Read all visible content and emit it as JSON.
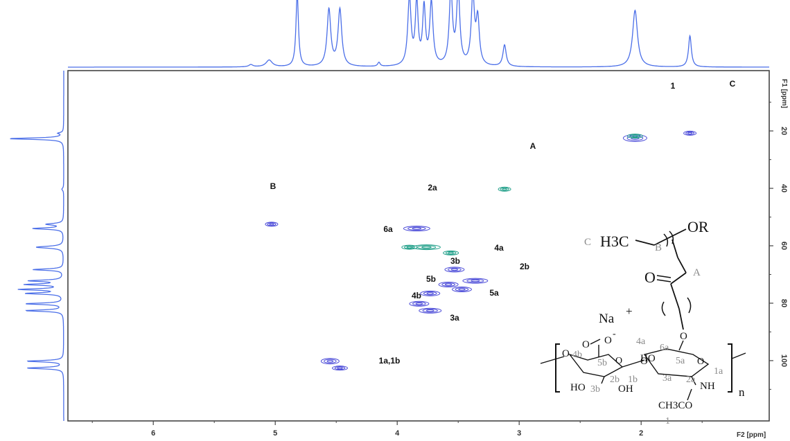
{
  "chart_data": {
    "type": "heatmap",
    "title": "",
    "xlabel": "F2 [ppm]",
    "ylabel": "F1 [ppm]",
    "xlim": [
      6.7,
      0.95
    ],
    "ylim": [
      -1,
      121
    ],
    "xticks": [
      6,
      5,
      4,
      3,
      2
    ],
    "yticks": [
      20,
      40,
      60,
      80,
      100
    ],
    "cross_peaks": [
      {
        "x": 2.05,
        "y": 22.5,
        "label": "1",
        "color": "#4a4ad8"
      },
      {
        "x": 2.05,
        "y": 21.8,
        "label": "",
        "color": "#22a08a"
      },
      {
        "x": 1.6,
        "y": 20.8,
        "label": "C",
        "color": "#4a4ad8"
      },
      {
        "x": 3.12,
        "y": 40.3,
        "label": "A",
        "color": "#22a08a"
      },
      {
        "x": 5.03,
        "y": 52.5,
        "label": "B",
        "color": "#4a4ad8"
      },
      {
        "x": 3.84,
        "y": 54.0,
        "label": "2a",
        "color": "#4a4ad8"
      },
      {
        "x": 3.9,
        "y": 60.5,
        "label": "",
        "color": "#22a08a"
      },
      {
        "x": 3.76,
        "y": 60.5,
        "label": "6a",
        "color": "#22a08a"
      },
      {
        "x": 3.56,
        "y": 62.5,
        "label": "",
        "color": "#22a08a"
      },
      {
        "x": 3.53,
        "y": 68.3,
        "label": "4a",
        "color": "#4a4ad8"
      },
      {
        "x": 3.36,
        "y": 72.2,
        "label": "2b",
        "color": "#4a4ad8"
      },
      {
        "x": 3.58,
        "y": 73.5,
        "label": "3b",
        "color": "#4a4ad8"
      },
      {
        "x": 3.47,
        "y": 75.2,
        "label": "5a",
        "color": "#4a4ad8"
      },
      {
        "x": 3.73,
        "y": 76.6,
        "label": "5b",
        "color": "#4a4ad8"
      },
      {
        "x": 3.82,
        "y": 80.2,
        "label": "4b",
        "color": "#4a4ad8"
      },
      {
        "x": 3.73,
        "y": 82.6,
        "label": "3a",
        "color": "#4a4ad8"
      },
      {
        "x": 4.55,
        "y": 100.2,
        "label": "1a,1b",
        "color": "#4a4ad8"
      },
      {
        "x": 4.47,
        "y": 102.6,
        "label": "",
        "color": "#4a4ad8"
      }
    ],
    "top_projection": [
      {
        "x": 5.2,
        "h": 0.04,
        "w": 0.02
      },
      {
        "x": 5.05,
        "h": 0.12,
        "w": 0.03
      },
      {
        "x": 4.82,
        "h": 1.3,
        "w": 0.012
      },
      {
        "x": 4.56,
        "h": 1.0,
        "w": 0.018
      },
      {
        "x": 4.47,
        "h": 1.0,
        "w": 0.018
      },
      {
        "x": 4.15,
        "h": 0.07,
        "w": 0.012
      },
      {
        "x": 3.9,
        "h": 1.2,
        "w": 0.016
      },
      {
        "x": 3.84,
        "h": 1.1,
        "w": 0.014
      },
      {
        "x": 3.78,
        "h": 1.0,
        "w": 0.014
      },
      {
        "x": 3.72,
        "h": 1.1,
        "w": 0.016
      },
      {
        "x": 3.56,
        "h": 1.3,
        "w": 0.016
      },
      {
        "x": 3.5,
        "h": 1.3,
        "w": 0.016
      },
      {
        "x": 3.38,
        "h": 1.2,
        "w": 0.016
      },
      {
        "x": 3.34,
        "h": 0.8,
        "w": 0.016
      },
      {
        "x": 3.12,
        "h": 0.38,
        "w": 0.016
      },
      {
        "x": 2.05,
        "h": 1.0,
        "w": 0.024
      },
      {
        "x": 1.6,
        "h": 0.55,
        "w": 0.014
      }
    ],
    "side_projection": [
      {
        "y": 20.8,
        "h": 0.08,
        "w": 0.3
      },
      {
        "y": 22.7,
        "h": 0.9,
        "w": 0.3
      },
      {
        "y": 40.3,
        "h": 0.03,
        "w": 0.5
      },
      {
        "y": 52.5,
        "h": 0.28,
        "w": 0.35
      },
      {
        "y": 54.0,
        "h": 0.5,
        "w": 0.3
      },
      {
        "y": 60.5,
        "h": 0.45,
        "w": 0.4
      },
      {
        "y": 68.3,
        "h": 0.5,
        "w": 0.3
      },
      {
        "y": 72.2,
        "h": 0.55,
        "w": 0.3
      },
      {
        "y": 73.5,
        "h": 0.6,
        "w": 0.3
      },
      {
        "y": 75.2,
        "h": 0.7,
        "w": 0.3
      },
      {
        "y": 76.6,
        "h": 0.6,
        "w": 0.3
      },
      {
        "y": 80.2,
        "h": 0.62,
        "w": 0.3
      },
      {
        "y": 82.6,
        "h": 0.62,
        "w": 0.3
      },
      {
        "y": 100.2,
        "h": 0.6,
        "w": 0.3
      },
      {
        "y": 102.6,
        "h": 0.6,
        "w": 0.3
      }
    ],
    "colors": {
      "projection": "#4a6ee8",
      "positive": "#4a4ad8",
      "negative": "#22a08a",
      "frame": "#444444"
    }
  },
  "structure": {
    "labels": {
      "C": "C",
      "H3C": "H3C",
      "B": "B",
      "OR": "OR",
      "A": "A",
      "O_carbonyl": "O",
      "Na": "Na",
      "plus": "+",
      "O_carboxylate": "O",
      "minus": "-",
      "4a": "4a",
      "6a": "6a",
      "HO_4a": "HO",
      "4b": "4b",
      "5b": "5b",
      "5a": "5a",
      "O_ring_b": "O",
      "O_ring_a": "O",
      "1a": "1a",
      "O_link_left": "O",
      "O_link_mid": "O",
      "HO_3b": "HO",
      "3b": "3b",
      "2b": "2b",
      "OH_2b": "OH",
      "1b": "1b",
      "3a": "3a",
      "2a": "2a",
      "NH": "NH",
      "n": "n",
      "CH3CO": "CH3CO",
      "1": "1"
    }
  }
}
